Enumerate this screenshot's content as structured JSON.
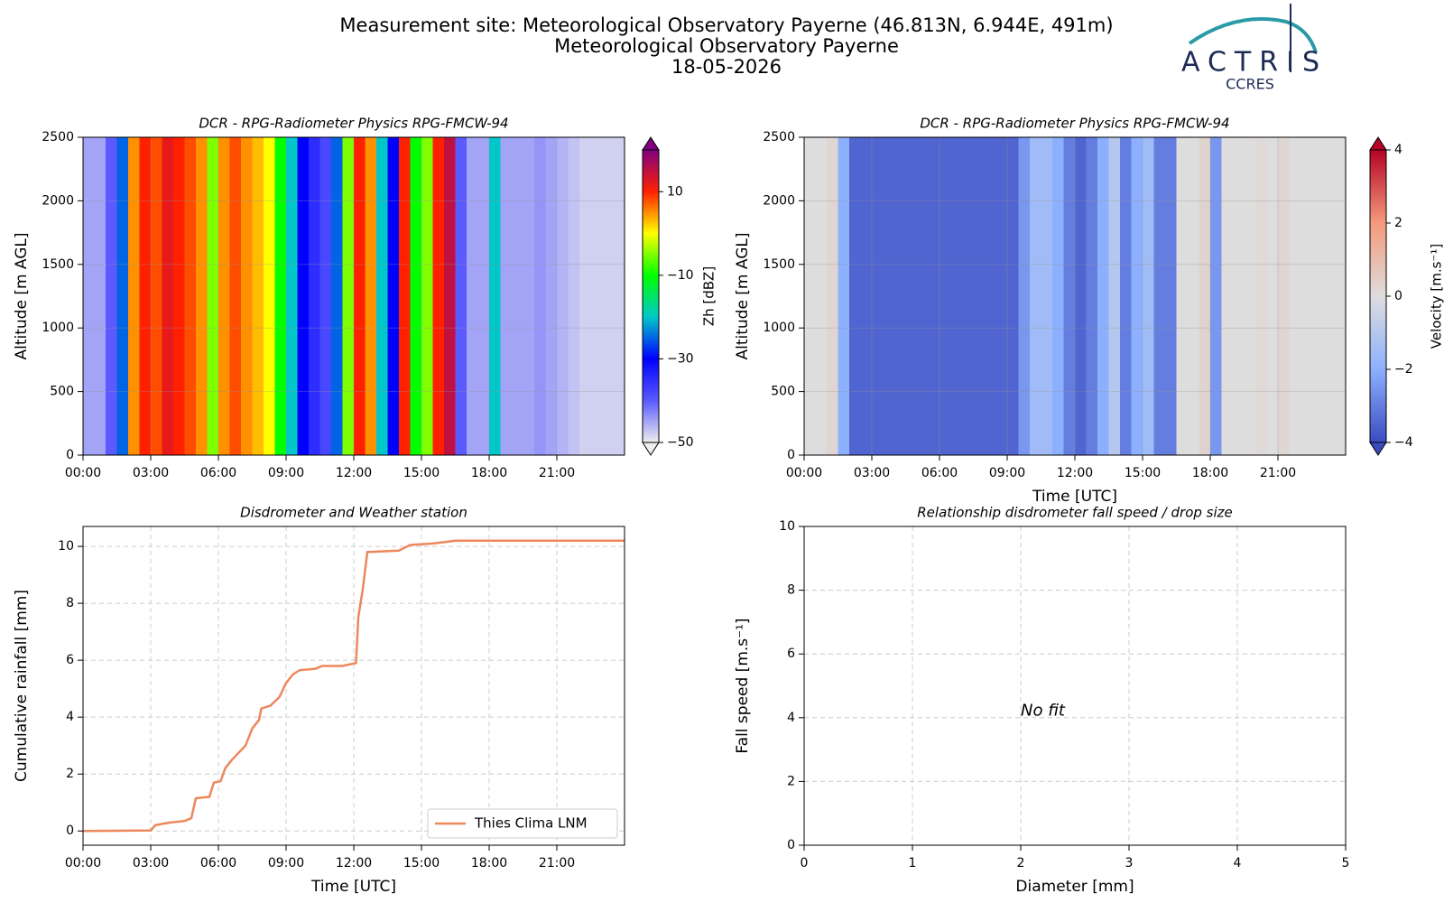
{
  "header": {
    "lines": [
      "Measurement site: Meteorological Observatory Payerne (46.813N, 6.944E, 491m)",
      "Meteorological Observatory Payerne",
      "18-05-2026"
    ],
    "logo": "ACTRIS",
    "logo_sub": "CCRES"
  },
  "chart_data": [
    {
      "type": "heatmap",
      "title": "DCR - RPG-Radiometer Physics RPG-FMCW-94",
      "ylabel": "Altitude [m AGL]",
      "xlim": [
        0,
        24
      ],
      "xticks": [
        {
          "value": 0,
          "label": "00:00"
        },
        {
          "value": 3,
          "label": "03:00"
        },
        {
          "value": 6,
          "label": "06:00"
        },
        {
          "value": 9,
          "label": "09:00"
        },
        {
          "value": 12,
          "label": "12:00"
        },
        {
          "value": 15,
          "label": "15:00"
        },
        {
          "value": 18,
          "label": "18:00"
        },
        {
          "value": 21,
          "label": "21:00"
        }
      ],
      "ylim": [
        0,
        2500
      ],
      "yticks": [
        0,
        500,
        1000,
        1500,
        2000,
        2500
      ],
      "grid": true,
      "clabel": "Zh [dBZ]",
      "clim": [
        -50,
        20
      ],
      "cticks": [
        {
          "value": -50,
          "label": "−50"
        },
        {
          "value": -30,
          "label": "−30"
        },
        {
          "value": -10,
          "label": "−10"
        },
        10
      ],
      "colormap": [
        "#eeeeee",
        "#5a5aff",
        "#0000ff",
        "#00c8c8",
        "#00ff00",
        "#ffff00",
        "#ff2000",
        "#800080"
      ],
      "x": [
        0,
        0.5,
        1,
        1.5,
        2,
        2.5,
        3,
        3.5,
        4,
        4.5,
        5,
        5.5,
        6,
        6.5,
        7,
        7.5,
        8,
        8.5,
        9,
        9.5,
        10,
        10.5,
        11,
        11.5,
        12,
        12.5,
        13,
        13.5,
        14,
        14.5,
        15,
        15.5,
        16,
        16.5,
        17,
        17.5,
        18,
        18.5,
        19,
        19.5,
        20,
        20.5,
        21,
        21.5,
        22,
        22.5,
        23,
        23.5
      ],
      "values": [
        -45,
        -45,
        -40,
        -25,
        5,
        10,
        8,
        12,
        10,
        8,
        5,
        -5,
        5,
        8,
        5,
        3,
        0,
        -10,
        -20,
        -30,
        -35,
        -38,
        -25,
        -5,
        10,
        5,
        -20,
        -30,
        10,
        -10,
        -5,
        10,
        15,
        -40,
        -45,
        -45,
        -20,
        -45,
        -45,
        -45,
        -44,
        -45,
        -46,
        -47,
        -48,
        -48,
        -48,
        -48
      ]
    },
    {
      "type": "heatmap",
      "title": "DCR - RPG-Radiometer Physics RPG-FMCW-94",
      "ylabel": "Altitude [m AGL]",
      "xlabel": "Time [UTC]",
      "xlim": [
        0,
        24
      ],
      "xticks": [
        {
          "value": 0,
          "label": "00:00"
        },
        {
          "value": 3,
          "label": "03:00"
        },
        {
          "value": 6,
          "label": "06:00"
        },
        {
          "value": 9,
          "label": "09:00"
        },
        {
          "value": 12,
          "label": "12:00"
        },
        {
          "value": 15,
          "label": "15:00"
        },
        {
          "value": 18,
          "label": "18:00"
        },
        {
          "value": 21,
          "label": "21:00"
        }
      ],
      "ylim": [
        0,
        2500
      ],
      "yticks": [
        0,
        500,
        1000,
        1500,
        2000,
        2500
      ],
      "grid": true,
      "clabel": "Velocity [m.s⁻¹]",
      "clim": [
        -4,
        4
      ],
      "cticks": [
        {
          "value": -4,
          "label": "−4"
        },
        {
          "value": -2,
          "label": "−2"
        },
        0,
        2,
        4
      ],
      "colormap": [
        "#3b4cc0",
        "#8db0fe",
        "#dddddd",
        "#f49a7b",
        "#b40426"
      ],
      "x": [
        0,
        0.5,
        1,
        1.5,
        2,
        2.5,
        3,
        3.5,
        4,
        4.5,
        5,
        5.5,
        6,
        6.5,
        7,
        7.5,
        8,
        8.5,
        9,
        9.5,
        10,
        10.5,
        11,
        11.5,
        12,
        12.5,
        13,
        13.5,
        14,
        14.5,
        15,
        15.5,
        16,
        16.5,
        17,
        17.5,
        18,
        18.5,
        19,
        19.5,
        20,
        20.5,
        21,
        21.5,
        22,
        22.5,
        23,
        23.5
      ],
      "values": [
        0,
        0,
        0.2,
        -2,
        -3.5,
        -3.5,
        -3.5,
        -3.5,
        -3.5,
        -3.5,
        -3.5,
        -3.5,
        -3.5,
        -3.5,
        -3.5,
        -3.5,
        -3.5,
        -3.5,
        -3.5,
        -2.5,
        -1.5,
        -1.5,
        -2,
        -3,
        -3.5,
        -3,
        -2,
        -1,
        -3,
        -2,
        -1.5,
        -3,
        -3,
        0,
        0,
        0.3,
        -2.5,
        0,
        0,
        0,
        0.1,
        0,
        0.2,
        0,
        0,
        0,
        0,
        0
      ]
    },
    {
      "type": "line",
      "title": "Disdrometer and Weather station",
      "xlabel": "Time [UTC]",
      "ylabel": "Cumulative rainfall [mm]",
      "xlim": [
        0,
        24
      ],
      "xticks": [
        {
          "value": 0,
          "label": "00:00"
        },
        {
          "value": 3,
          "label": "03:00"
        },
        {
          "value": 6,
          "label": "06:00"
        },
        {
          "value": 9,
          "label": "09:00"
        },
        {
          "value": 12,
          "label": "12:00"
        },
        {
          "value": 15,
          "label": "15:00"
        },
        {
          "value": 18,
          "label": "18:00"
        },
        {
          "value": 21,
          "label": "21:00"
        }
      ],
      "ylim": [
        -0.5,
        10.7
      ],
      "yticks": [
        0,
        2,
        4,
        6,
        8,
        10
      ],
      "grid": true,
      "legend": "lower right",
      "x": [
        0,
        3,
        3.2,
        3.5,
        3.9,
        4.5,
        4.8,
        5,
        5.6,
        5.8,
        6.1,
        6.3,
        6.6,
        7.2,
        7.5,
        7.8,
        7.9,
        8.3,
        8.7,
        9,
        9.3,
        9.6,
        10.3,
        10.6,
        11.5,
        12.1,
        12.2,
        12.4,
        12.6,
        14,
        14.5,
        15.5,
        16,
        16.5,
        24
      ],
      "series": [
        {
          "name": "Thies Clima LNM",
          "color": "#ed875c",
          "values": [
            0,
            0.02,
            0.2,
            0.25,
            0.3,
            0.35,
            0.45,
            1.15,
            1.2,
            1.7,
            1.75,
            2.2,
            2.5,
            3,
            3.6,
            3.9,
            4.3,
            4.4,
            4.7,
            5.2,
            5.5,
            5.65,
            5.7,
            5.8,
            5.8,
            5.9,
            7.5,
            8.5,
            9.8,
            9.85,
            10.05,
            10.1,
            10.15,
            10.2,
            10.2
          ]
        }
      ]
    },
    {
      "type": "scatter",
      "title": "Relationship disdrometer fall speed / drop size",
      "xlabel": "Diameter [mm]",
      "ylabel": "Fall speed [m.s⁻¹]",
      "xlim": [
        0,
        5
      ],
      "xticks": [
        0,
        1,
        2,
        3,
        4,
        5
      ],
      "ylim": [
        0,
        10
      ],
      "yticks": [
        0,
        2,
        4,
        6,
        8,
        10
      ],
      "grid": true,
      "annotation": "No fit"
    }
  ]
}
